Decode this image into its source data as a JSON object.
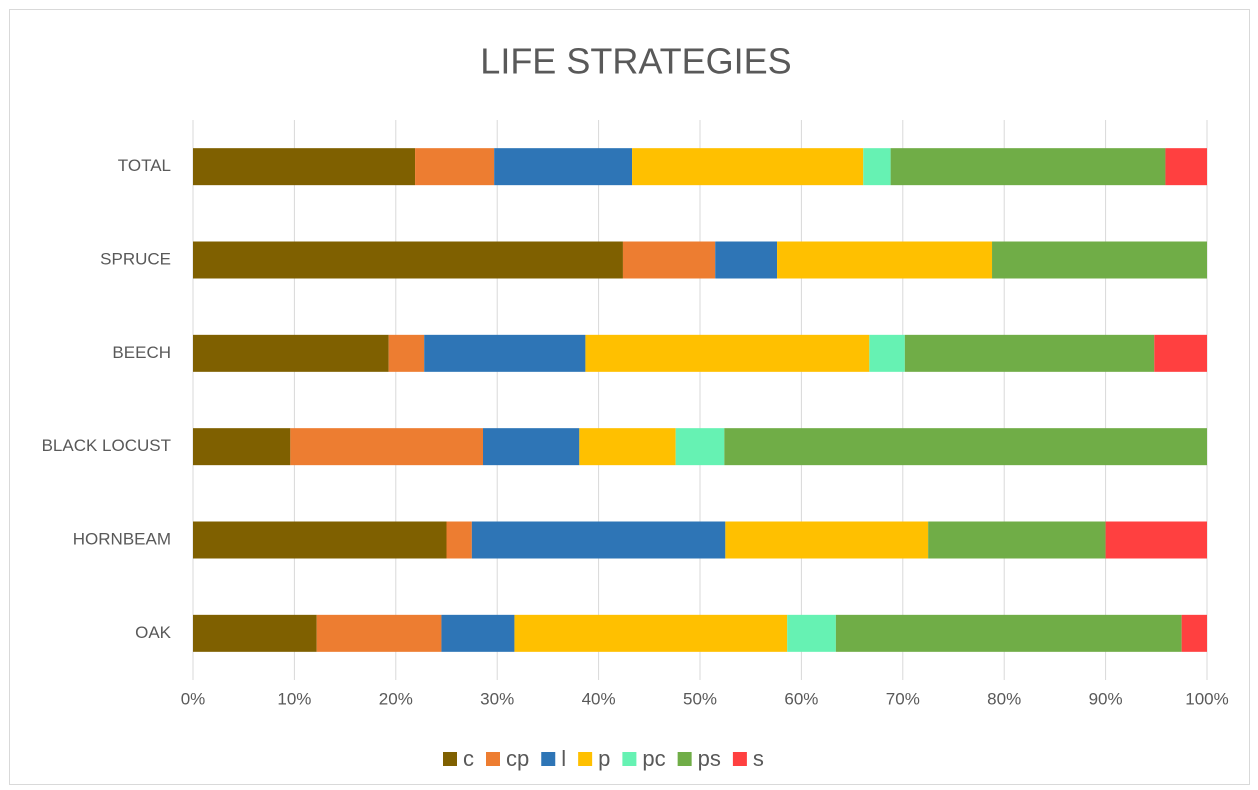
{
  "chart_data": {
    "type": "stacked-barh",
    "title": "LIFE STRATEGIES",
    "categories": [
      "TOTAL",
      "SPRUCE",
      "BEECH",
      "BLACK LOCUST",
      "HORNBEAM",
      "OAK"
    ],
    "series": [
      {
        "name": "c",
        "color": "#7f6000",
        "values": [
          21.9,
          42.4,
          19.3,
          9.6,
          25.0,
          12.2
        ]
      },
      {
        "name": "cp",
        "color": "#ed7d31",
        "values": [
          7.8,
          9.1,
          3.5,
          19.0,
          2.5,
          12.3
        ]
      },
      {
        "name": "l",
        "color": "#2e75b6",
        "values": [
          13.6,
          6.1,
          15.9,
          9.5,
          25.0,
          7.2
        ]
      },
      {
        "name": "p",
        "color": "#ffc000",
        "values": [
          22.8,
          21.2,
          28.0,
          9.5,
          20.0,
          26.9
        ]
      },
      {
        "name": "pc",
        "color": "#66f2b3",
        "values": [
          2.7,
          0,
          3.5,
          4.8,
          0,
          4.8
        ]
      },
      {
        "name": "ps",
        "color": "#70ad47",
        "values": [
          27.1,
          21.2,
          24.6,
          47.6,
          17.5,
          34.1
        ]
      },
      {
        "name": "s",
        "color": "#ff4040",
        "values": [
          4.1,
          0,
          5.2,
          0,
          10.0,
          2.5
        ]
      }
    ],
    "xlim": [
      0,
      100
    ],
    "xticks": [
      {
        "value": 0,
        "label": "0%"
      },
      {
        "value": 10,
        "label": "10%"
      },
      {
        "value": 20,
        "label": "20%"
      },
      {
        "value": 30,
        "label": "30%"
      },
      {
        "value": 40,
        "label": "40%"
      },
      {
        "value": 50,
        "label": "50%"
      },
      {
        "value": 60,
        "label": "60%"
      },
      {
        "value": 70,
        "label": "70%"
      },
      {
        "value": 80,
        "label": "80%"
      },
      {
        "value": 90,
        "label": "90%"
      },
      {
        "value": 100,
        "label": "100%"
      }
    ],
    "grid": true,
    "legend": "bottom"
  }
}
